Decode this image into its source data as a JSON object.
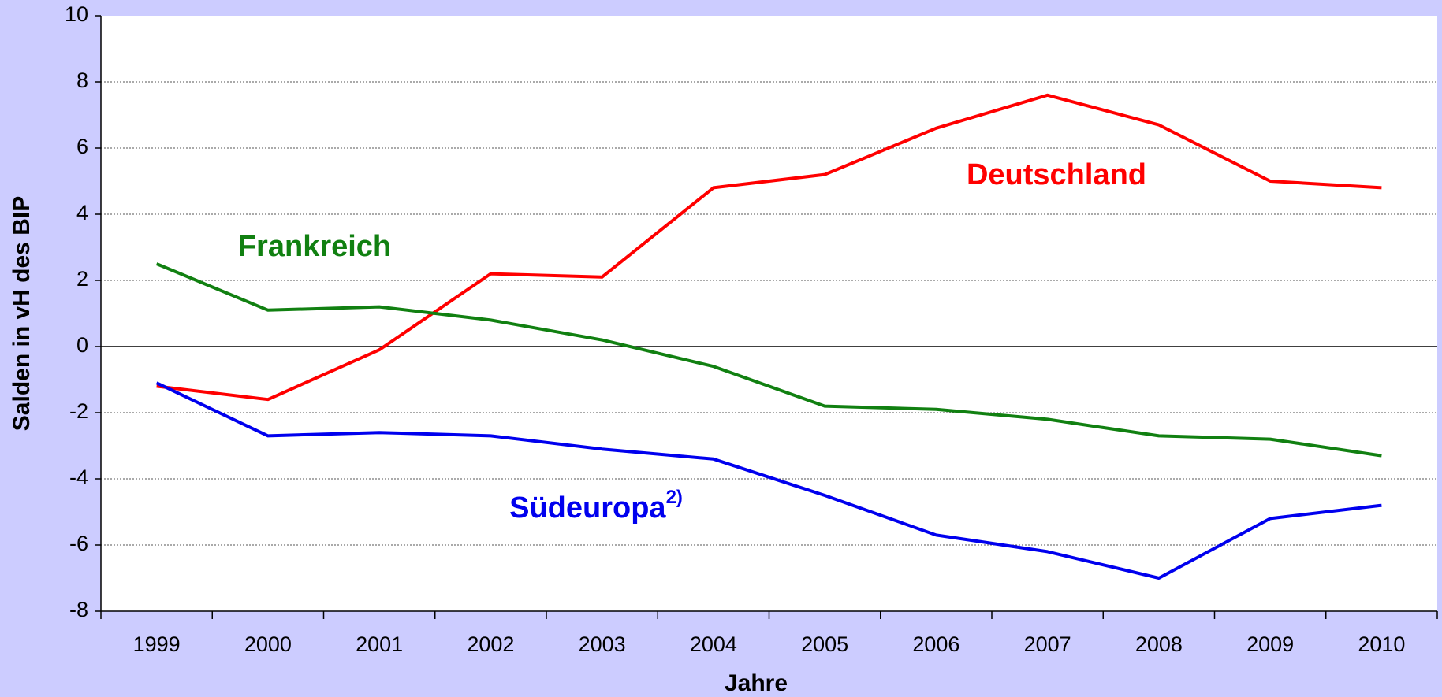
{
  "chart_data": {
    "type": "line",
    "x_label": "Jahre",
    "y_label": "Salden in vH des BIP",
    "categories": [
      "1999",
      "2000",
      "2001",
      "2002",
      "2003",
      "2004",
      "2005",
      "2006",
      "2007",
      "2008",
      "2009",
      "2010"
    ],
    "series": [
      {
        "name": "Deutschland",
        "color": "#ff0000",
        "values": [
          -1.2,
          -1.6,
          -0.1,
          2.2,
          2.1,
          4.8,
          5.2,
          6.6,
          7.6,
          6.7,
          5.0,
          4.8
        ]
      },
      {
        "name": "Frankreich",
        "color": "#118011",
        "values": [
          2.5,
          1.1,
          1.2,
          0.8,
          0.2,
          -0.6,
          -1.8,
          -1.9,
          -2.2,
          -2.7,
          -2.8,
          -3.3
        ]
      },
      {
        "name": "Südeuropa",
        "name_note": "2)",
        "color": "#0000ee",
        "values": [
          -1.1,
          -2.7,
          -2.6,
          -2.7,
          -3.1,
          -3.4,
          -4.5,
          -5.7,
          -6.2,
          -7.0,
          -5.2,
          -4.8
        ]
      }
    ],
    "ylim": [
      -8,
      10
    ],
    "yticks": [
      -8,
      -6,
      -4,
      -2,
      0,
      2,
      4,
      6,
      8,
      10
    ],
    "grid": true
  }
}
